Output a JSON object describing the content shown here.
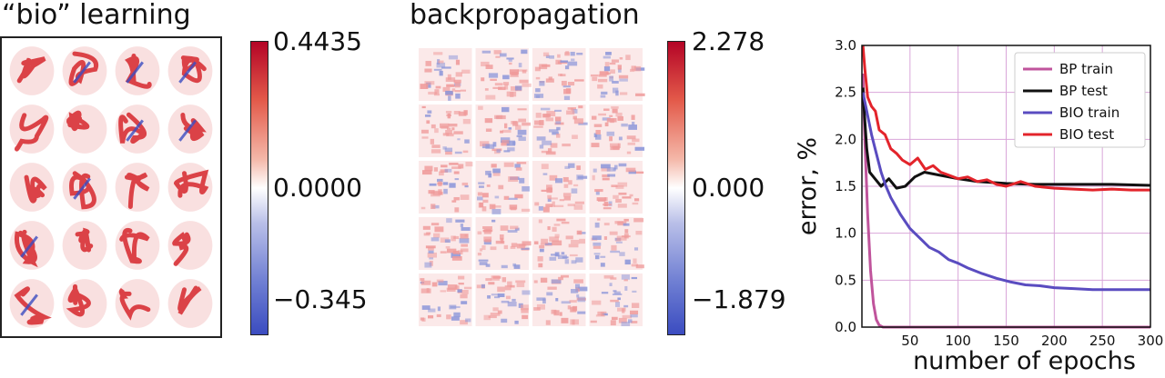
{
  "panels": {
    "bio": {
      "title": "“bio” learning",
      "colorbar": {
        "max": "0.4435",
        "mid": "0.0000",
        "min": "−0.345"
      },
      "weights_grid": {
        "rows": 5,
        "cols": 4,
        "content": "digit-like receptive fields"
      }
    },
    "bp": {
      "title": "backpropagation",
      "colorbar": {
        "max": "2.278",
        "mid": "0.000",
        "min": "−1.879"
      },
      "weights_grid": {
        "rows": 5,
        "cols": 4,
        "content": "noisy receptive fields"
      }
    }
  },
  "colors": {
    "positive": "#d6262c",
    "negative": "#3b4cc0",
    "bp_train": "#c0549c",
    "bp_test": "#111111",
    "bio_train": "#5a4cc0",
    "bio_test": "#e3242b",
    "grid": "#d9a6d9"
  },
  "chart_data": {
    "type": "line",
    "title": "",
    "xlabel": "number of epochs",
    "ylabel": "error, %",
    "xlim": [
      0,
      300
    ],
    "ylim": [
      0.0,
      3.0
    ],
    "xticks": [
      "50",
      "100",
      "150",
      "200",
      "250",
      "300"
    ],
    "yticks": [
      "0.0",
      "0.5",
      "1.0",
      "1.5",
      "2.0",
      "2.5",
      "3.0"
    ],
    "grid": true,
    "legend_position": "top-right",
    "series": [
      {
        "name": "BP train",
        "color": "#c0549c",
        "x": [
          1,
          3,
          6,
          9,
          12,
          15,
          18,
          22,
          300
        ],
        "y": [
          2.7,
          2.0,
          1.2,
          0.6,
          0.25,
          0.08,
          0.02,
          0.0,
          0.0
        ]
      },
      {
        "name": "BP test",
        "color": "#111111",
        "x": [
          1,
          3,
          5,
          8,
          12,
          20,
          28,
          36,
          45,
          55,
          65,
          80,
          100,
          120,
          150,
          180,
          220,
          260,
          300
        ],
        "y": [
          2.55,
          2.2,
          1.9,
          1.65,
          1.6,
          1.5,
          1.58,
          1.48,
          1.5,
          1.6,
          1.65,
          1.62,
          1.58,
          1.55,
          1.53,
          1.52,
          1.52,
          1.52,
          1.51
        ]
      },
      {
        "name": "BIO train",
        "color": "#5a4cc0",
        "x": [
          1,
          5,
          10,
          15,
          20,
          25,
          30,
          40,
          50,
          60,
          70,
          80,
          90,
          100,
          110,
          125,
          140,
          155,
          170,
          185,
          200,
          220,
          240,
          260,
          280,
          300
        ],
        "y": [
          2.5,
          2.3,
          2.05,
          1.85,
          1.65,
          1.5,
          1.38,
          1.2,
          1.05,
          0.95,
          0.85,
          0.8,
          0.72,
          0.68,
          0.63,
          0.57,
          0.52,
          0.48,
          0.45,
          0.44,
          0.42,
          0.41,
          0.4,
          0.4,
          0.4,
          0.4
        ]
      },
      {
        "name": "BIO test",
        "color": "#e3242b",
        "x": [
          1,
          3,
          6,
          10,
          14,
          18,
          24,
          30,
          36,
          42,
          50,
          58,
          66,
          74,
          82,
          90,
          100,
          110,
          120,
          130,
          140,
          150,
          165,
          180,
          200,
          220,
          240,
          260,
          280,
          300
        ],
        "y": [
          3.0,
          2.75,
          2.45,
          2.35,
          2.3,
          2.1,
          2.05,
          1.9,
          1.85,
          1.78,
          1.73,
          1.8,
          1.68,
          1.72,
          1.65,
          1.62,
          1.58,
          1.6,
          1.55,
          1.57,
          1.52,
          1.5,
          1.55,
          1.5,
          1.48,
          1.47,
          1.46,
          1.47,
          1.46,
          1.46
        ]
      }
    ]
  }
}
